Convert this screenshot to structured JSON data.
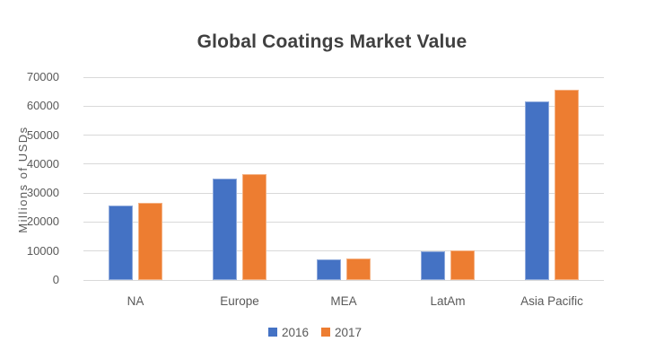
{
  "chart_data": {
    "type": "bar",
    "title": "Global Coatings Market Value",
    "xlabel": "",
    "ylabel": "Millions of USDs",
    "categories": [
      "NA",
      "Europe",
      "MEA",
      "LatAm",
      "Asia Pacific"
    ],
    "series": [
      {
        "name": "2016",
        "color": "#4472C4",
        "border_color": "#8FAADC",
        "values": [
          25800,
          35000,
          7000,
          9800,
          61700
        ]
      },
      {
        "name": "2017",
        "color": "#ED7D31",
        "border_color": "#F4B183",
        "values": [
          26700,
          36600,
          7400,
          10200,
          65700
        ]
      }
    ],
    "ylim": [
      0,
      70000
    ],
    "ytick_step": 10000,
    "yticks": [
      "0",
      "10000",
      "20000",
      "30000",
      "40000",
      "50000",
      "60000",
      "70000"
    ],
    "grid": "horizontal",
    "gridline_color": "#D9D9D9",
    "legend_position": "bottom",
    "text_color": "#595959",
    "title_color": "#404040",
    "background_color": "#FFFFFF"
  }
}
